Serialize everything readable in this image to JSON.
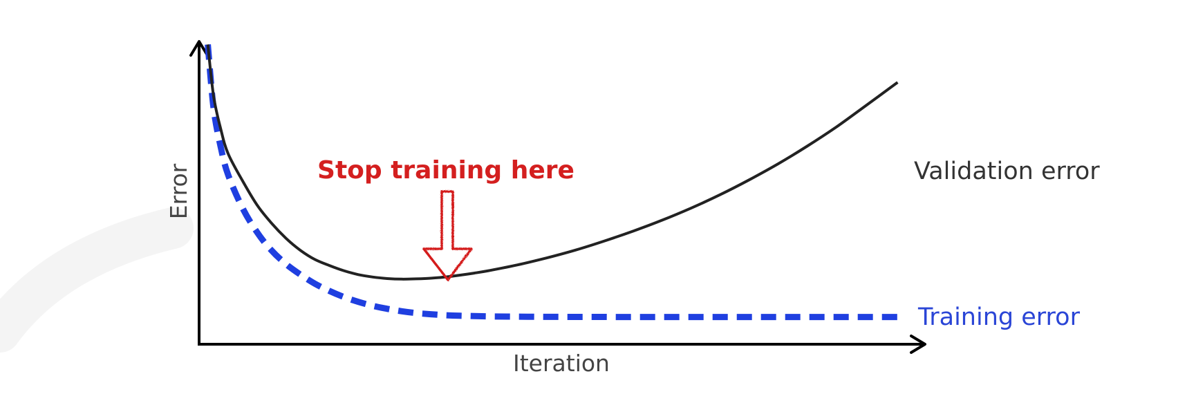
{
  "chart_data": {
    "type": "line",
    "title": "",
    "xlabel": "Iteration",
    "ylabel": "Error",
    "grid": false,
    "legend": "inline labels at line ends",
    "xlim": [
      0,
      100
    ],
    "ylim": [
      0,
      100
    ],
    "series": [
      {
        "name": "Validation error",
        "style": "solid",
        "color": "#222222",
        "x": [
          1.2,
          2,
          3,
          4,
          6,
          8,
          10,
          12,
          14,
          16,
          18,
          20,
          22,
          24,
          26,
          28,
          30,
          32,
          34,
          36,
          38,
          40,
          44,
          48,
          52,
          56,
          60,
          64,
          68,
          72,
          76,
          80,
          84,
          88,
          92,
          96.5
        ],
        "y": [
          99,
          82,
          71,
          63,
          54,
          46,
          40,
          35,
          31,
          28,
          26,
          24.3,
          23,
          22.2,
          21.7,
          21.5,
          21.6,
          21.8,
          22.2,
          22.8,
          23.5,
          24.3,
          26.2,
          28.5,
          31.1,
          34.1,
          37.4,
          41,
          45,
          49.4,
          54.3,
          59.6,
          65.4,
          71.7,
          78.6,
          86.5
        ]
      },
      {
        "name": "Training error",
        "style": "dashed",
        "color": "#1f3fe0",
        "x": [
          1.2,
          2,
          3,
          4,
          6,
          8,
          10,
          12,
          14,
          16,
          18,
          20,
          22,
          24,
          26,
          28,
          30,
          32,
          34,
          36,
          38,
          40,
          44,
          48,
          52,
          56,
          60,
          64,
          68,
          72,
          76,
          80,
          84,
          88,
          92,
          96.5
        ],
        "y": [
          99,
          78,
          65,
          56,
          45,
          37,
          31,
          26.5,
          23,
          20,
          17.6,
          15.6,
          14,
          12.7,
          11.7,
          10.9,
          10.3,
          9.9,
          9.6,
          9.4,
          9.3,
          9.2,
          9.1,
          9.05,
          9.02,
          9.01,
          9,
          9,
          9,
          9,
          9,
          9,
          9,
          9,
          9,
          9
        ]
      }
    ],
    "annotations": [
      {
        "text": "Stop training here",
        "color": "#d41f1f",
        "x": 27.5,
        "y": 21.5
      }
    ]
  }
}
